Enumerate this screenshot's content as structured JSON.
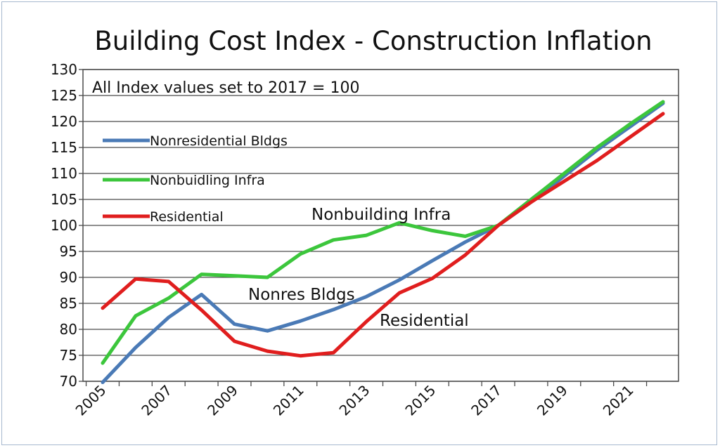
{
  "chart_data": {
    "type": "line",
    "title": "Building Cost Index  - Construction Inflation",
    "note": "All Index values set to 2017 = 100",
    "xlabel": "",
    "ylabel": "",
    "xlim": [
      2005,
      2022
    ],
    "ylim": [
      70,
      130
    ],
    "x_tick_labels": [
      "2005",
      "2007",
      "2009",
      "2011",
      "2013",
      "2015",
      "2017",
      "2019",
      "2021"
    ],
    "y_tick_labels": [
      "70",
      "75",
      "80",
      "85",
      "90",
      "95",
      "100",
      "105",
      "110",
      "115",
      "120",
      "125",
      "130"
    ],
    "grid": "horizontal",
    "legend_position": "upper-left",
    "series": [
      {
        "name": "Nonresidential Bldgs",
        "color": "#4a7ab6",
        "x": [
          2005,
          2006,
          2007,
          2008,
          2009,
          2010,
          2011,
          2012,
          2013,
          2014,
          2015,
          2016,
          2017,
          2018,
          2019,
          2020,
          2021,
          2022
        ],
        "y": [
          69.8,
          76.5,
          82.3,
          86.7,
          81.0,
          79.7,
          81.6,
          83.8,
          86.3,
          89.5,
          93.2,
          96.8,
          100,
          104.5,
          109.5,
          114.5,
          119.0,
          123.5
        ]
      },
      {
        "name": "Nonbuidling Infra",
        "color": "#3cc63c",
        "x": [
          2005,
          2006,
          2007,
          2008,
          2009,
          2010,
          2011,
          2012,
          2013,
          2014,
          2015,
          2016,
          2017,
          2018,
          2019,
          2020,
          2021,
          2022
        ],
        "y": [
          73.5,
          82.6,
          86.0,
          90.6,
          90.3,
          90.0,
          94.5,
          97.2,
          98.1,
          100.5,
          99.0,
          97.9,
          100,
          105.0,
          110.0,
          115.0,
          119.5,
          123.8
        ]
      },
      {
        "name": "Residential",
        "color": "#e01e1e",
        "x": [
          2005,
          2006,
          2007,
          2008,
          2009,
          2010,
          2011,
          2012,
          2013,
          2014,
          2015,
          2016,
          2017,
          2018,
          2019,
          2020,
          2021,
          2022
        ],
        "y": [
          84.1,
          89.7,
          89.2,
          83.7,
          77.7,
          75.8,
          74.9,
          75.5,
          81.5,
          87.0,
          89.8,
          94.3,
          100,
          104.5,
          108.5,
          112.5,
          117.0,
          121.5
        ]
      }
    ],
    "annotations": [
      {
        "text": "Nonbuilding Infra",
        "series": "Nonbuidling Infra"
      },
      {
        "text": "Nonres Bldgs",
        "series": "Nonresidential Bldgs"
      },
      {
        "text": "Residential",
        "series": "Residential"
      }
    ]
  }
}
